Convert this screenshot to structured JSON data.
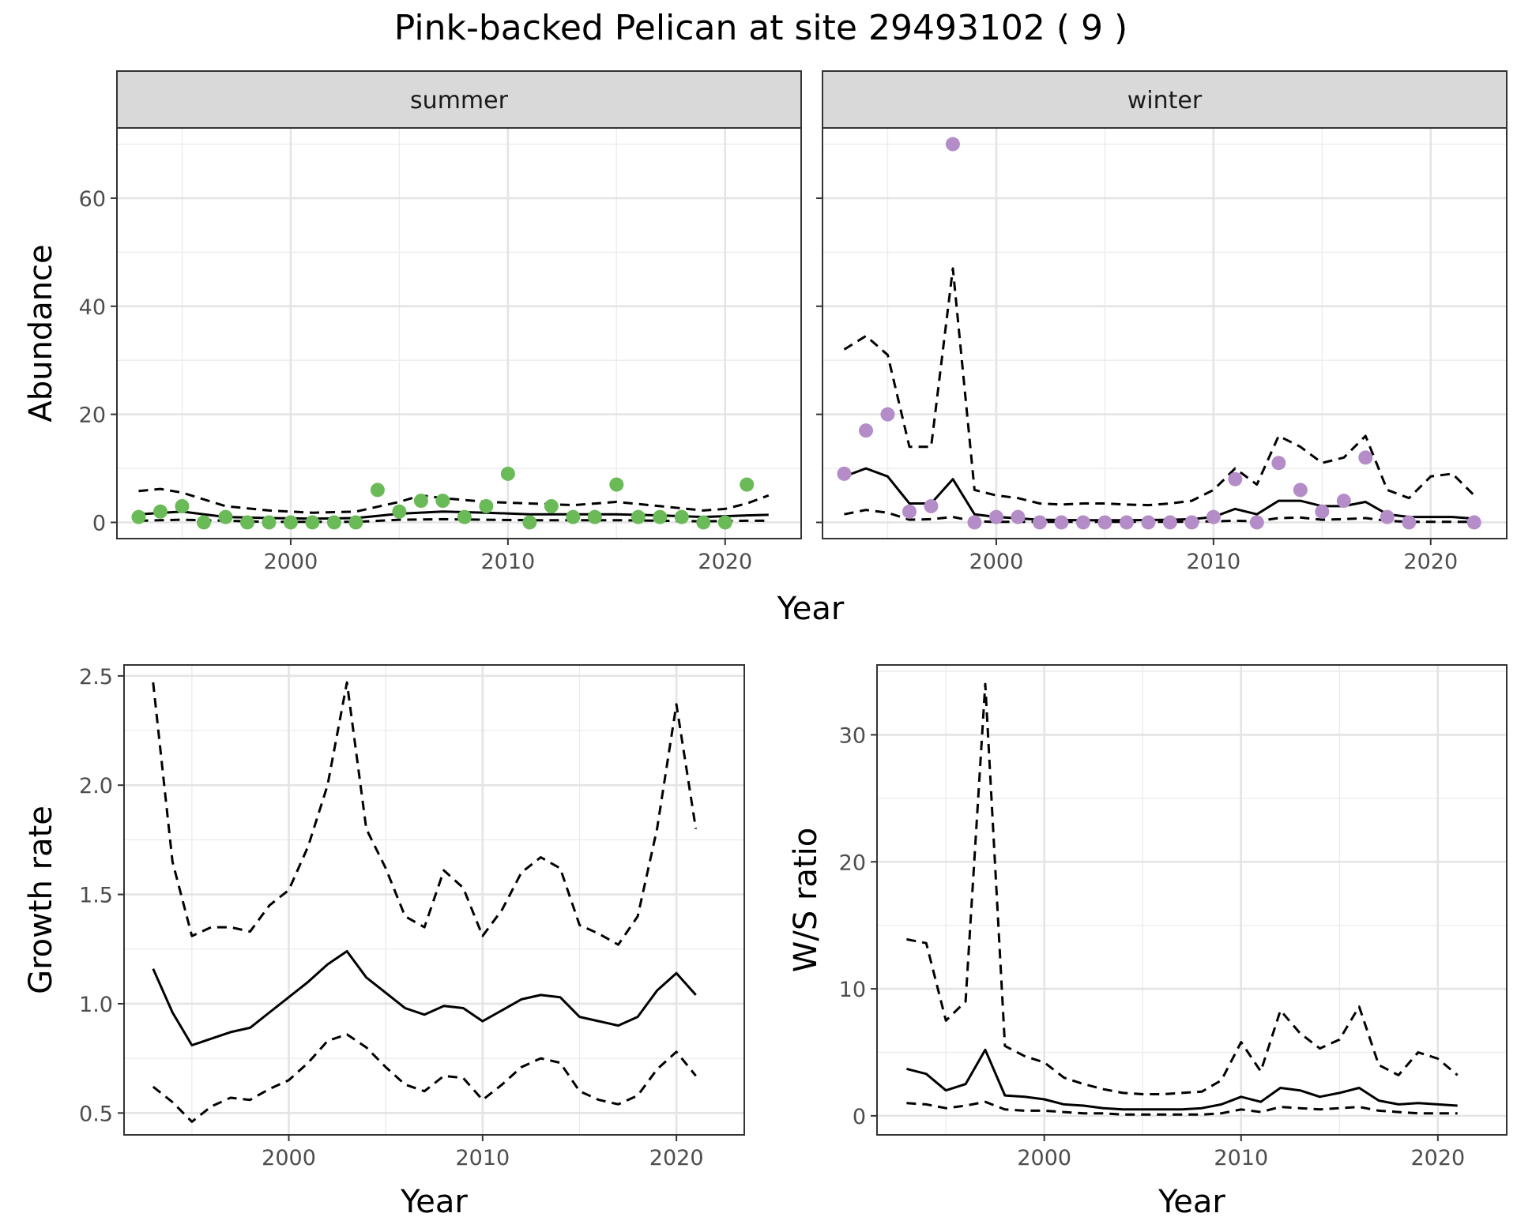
{
  "title": "Pink-backed Pelican at site 29493102 ( 9 )",
  "colors": {
    "summer_points": "#6aba58",
    "winter_points": "#b48cc8",
    "lines": "#000000"
  },
  "chart_data": [
    {
      "type": "scatter",
      "panel": "summer",
      "strip": "summer",
      "xlabel": "",
      "ylabel": "Abundance",
      "xlim": [
        1992,
        2023.5
      ],
      "ylim": [
        -3,
        73
      ],
      "xticks": [
        2000,
        2010,
        2020
      ],
      "yticks": [
        0,
        20,
        40,
        60
      ],
      "grid": true,
      "points": {
        "x": [
          1993,
          1994,
          1995,
          1996,
          1997,
          1998,
          1999,
          2000,
          2001,
          2002,
          2003,
          2004,
          2005,
          2006,
          2007,
          2008,
          2009,
          2010,
          2011,
          2012,
          2013,
          2014,
          2015,
          2016,
          2017,
          2018,
          2019,
          2020,
          2021
        ],
        "y": [
          1,
          2,
          3,
          0,
          1,
          0,
          0,
          0,
          0,
          0,
          0,
          6,
          2,
          4,
          4,
          1,
          3,
          9,
          0,
          3,
          1,
          1,
          7,
          1,
          1,
          1,
          0,
          0,
          7
        ]
      },
      "lines": [
        {
          "style": "solid",
          "x": [
            1993,
            1995,
            1997,
            1999,
            2001,
            2003,
            2005,
            2007,
            2009,
            2011,
            2013,
            2015,
            2017,
            2019,
            2021,
            2022
          ],
          "y": [
            1.5,
            2,
            1,
            0.8,
            0.7,
            0.8,
            1.6,
            2,
            1.8,
            1.5,
            1.5,
            1.5,
            1.3,
            1,
            1.3,
            1.4
          ]
        },
        {
          "style": "dashed",
          "x": [
            1993,
            1994,
            1995,
            1997,
            1999,
            2001,
            2003,
            2005,
            2006,
            2007,
            2009,
            2011,
            2013,
            2015,
            2017,
            2019,
            2020,
            2021,
            2022
          ],
          "y": [
            5.8,
            6.2,
            5.5,
            3,
            2.2,
            1.8,
            2,
            3.8,
            5,
            4.5,
            3.8,
            3.5,
            3.2,
            3.8,
            3,
            2.2,
            2.5,
            3.5,
            5
          ]
        },
        {
          "style": "dashed",
          "x": [
            1993,
            1995,
            1997,
            1999,
            2001,
            2003,
            2005,
            2007,
            2009,
            2011,
            2013,
            2015,
            2017,
            2019,
            2021,
            2022
          ],
          "y": [
            0.3,
            0.5,
            0.3,
            0.1,
            0.1,
            0.1,
            0.5,
            0.6,
            0.5,
            0.4,
            0.4,
            0.4,
            0.3,
            0.2,
            0.3,
            0.3
          ]
        }
      ]
    },
    {
      "type": "scatter",
      "panel": "winter",
      "strip": "winter",
      "xlabel": "",
      "ylabel": "",
      "xlim": [
        1992,
        2023.5
      ],
      "ylim": [
        -3,
        73
      ],
      "xticks": [
        2000,
        2010,
        2020
      ],
      "yticks": [
        0,
        20,
        40,
        60
      ],
      "grid": true,
      "points": {
        "x": [
          1993,
          1994,
          1995,
          1996,
          1997,
          1998,
          1999,
          2000,
          2001,
          2002,
          2003,
          2004,
          2005,
          2006,
          2007,
          2008,
          2009,
          2010,
          2011,
          2012,
          2013,
          2014,
          2015,
          2016,
          2017,
          2018,
          2019,
          2022
        ],
        "y": [
          9,
          17,
          20,
          2,
          3,
          70,
          0,
          1,
          1,
          0,
          0,
          0,
          0,
          0,
          0,
          0,
          0,
          1,
          8,
          0,
          11,
          6,
          2,
          4,
          12,
          1,
          0,
          0
        ]
      },
      "lines": [
        {
          "style": "solid",
          "x": [
            1993,
            1994,
            1995,
            1996,
            1997,
            1998,
            1999,
            2000,
            2002,
            2004,
            2006,
            2008,
            2009,
            2010,
            2011,
            2012,
            2013,
            2014,
            2015,
            2016,
            2017,
            2018,
            2019,
            2020,
            2021,
            2022
          ],
          "y": [
            8.5,
            10,
            8.5,
            3.5,
            3.5,
            8,
            1.5,
            1,
            0.5,
            0.4,
            0.4,
            0.5,
            0.6,
            1,
            2.5,
            1.5,
            4,
            4,
            3,
            3,
            3.8,
            1.5,
            1,
            1,
            1,
            0.7
          ]
        },
        {
          "style": "dashed",
          "x": [
            1993,
            1994,
            1995,
            1996,
            1997,
            1998,
            1999,
            2000,
            2001,
            2002,
            2003,
            2004,
            2005,
            2006,
            2007,
            2008,
            2009,
            2010,
            2011,
            2012,
            2013,
            2014,
            2015,
            2016,
            2017,
            2018,
            2019,
            2020,
            2021,
            2022
          ],
          "y": [
            32,
            34.5,
            31,
            14,
            14,
            47,
            6,
            5,
            4.5,
            3.5,
            3.3,
            3.5,
            3.5,
            3.3,
            3.2,
            3.5,
            4,
            6,
            10,
            7,
            16,
            14,
            11,
            12,
            16,
            6,
            4.5,
            8.5,
            9,
            5
          ]
        },
        {
          "style": "dashed",
          "x": [
            1993,
            1994,
            1995,
            1996,
            1997,
            1998,
            1999,
            2000,
            2002,
            2004,
            2006,
            2008,
            2010,
            2011,
            2012,
            2013,
            2014,
            2015,
            2016,
            2017,
            2018,
            2019,
            2020,
            2021,
            2022
          ],
          "y": [
            1.5,
            2.3,
            1.8,
            0.5,
            0.6,
            1,
            0.2,
            0.1,
            0.1,
            0.1,
            0.1,
            0.1,
            0.2,
            0.3,
            0.2,
            0.8,
            0.9,
            0.5,
            0.6,
            0.8,
            0.3,
            0.1,
            0.1,
            0.1,
            0.1
          ]
        }
      ]
    },
    {
      "type": "line",
      "panel": "growth",
      "xlabel": "Year",
      "ylabel": "Growth rate",
      "xlim": [
        1991.5,
        2023.5
      ],
      "ylim": [
        0.4,
        2.55
      ],
      "xticks": [
        2000,
        2010,
        2020
      ],
      "yticks": [
        0.5,
        1.0,
        1.5,
        2.0,
        2.5
      ],
      "ytick_labels": [
        "0.5",
        "1.0",
        "1.5",
        "2.0",
        "2.5"
      ],
      "grid": true,
      "lines": [
        {
          "style": "solid",
          "x": [
            1993,
            1994,
            1995,
            1996,
            1997,
            1998,
            1999,
            2000,
            2001,
            2002,
            2003,
            2004,
            2005,
            2006,
            2007,
            2008,
            2009,
            2010,
            2011,
            2012,
            2013,
            2014,
            2015,
            2016,
            2017,
            2018,
            2019,
            2020,
            2021
          ],
          "y": [
            1.16,
            0.96,
            0.81,
            0.84,
            0.87,
            0.89,
            0.96,
            1.03,
            1.1,
            1.18,
            1.24,
            1.12,
            1.05,
            0.98,
            0.95,
            0.99,
            0.98,
            0.92,
            0.97,
            1.02,
            1.04,
            1.03,
            0.94,
            0.92,
            0.9,
            0.94,
            1.06,
            1.14,
            1.04
          ]
        },
        {
          "style": "dashed",
          "x": [
            1993,
            1994,
            1995,
            1996,
            1997,
            1998,
            1999,
            2000,
            2001,
            2002,
            2003,
            2004,
            2005,
            2006,
            2007,
            2008,
            2009,
            2010,
            2011,
            2012,
            2013,
            2014,
            2015,
            2016,
            2017,
            2018,
            2019,
            2020,
            2021
          ],
          "y": [
            2.47,
            1.65,
            1.31,
            1.35,
            1.35,
            1.33,
            1.45,
            1.52,
            1.72,
            2.0,
            2.47,
            1.8,
            1.62,
            1.4,
            1.35,
            1.61,
            1.53,
            1.31,
            1.43,
            1.6,
            1.67,
            1.62,
            1.36,
            1.32,
            1.27,
            1.4,
            1.8,
            2.37,
            1.8
          ]
        },
        {
          "style": "dashed",
          "x": [
            1993,
            1994,
            1995,
            1996,
            1997,
            1998,
            1999,
            2000,
            2001,
            2002,
            2003,
            2004,
            2005,
            2006,
            2007,
            2008,
            2009,
            2010,
            2011,
            2012,
            2013,
            2014,
            2015,
            2016,
            2017,
            2018,
            2019,
            2020,
            2021
          ],
          "y": [
            0.62,
            0.55,
            0.46,
            0.53,
            0.57,
            0.56,
            0.61,
            0.65,
            0.73,
            0.83,
            0.86,
            0.8,
            0.71,
            0.63,
            0.6,
            0.67,
            0.66,
            0.56,
            0.63,
            0.71,
            0.75,
            0.73,
            0.6,
            0.56,
            0.54,
            0.58,
            0.7,
            0.78,
            0.67
          ]
        }
      ]
    },
    {
      "type": "line",
      "panel": "ratio",
      "xlabel": "Year",
      "ylabel": "W/S ratio",
      "xlim": [
        1991.5,
        2023.5
      ],
      "ylim": [
        -1.5,
        35.5
      ],
      "xticks": [
        2000,
        2010,
        2020
      ],
      "yticks": [
        0,
        10,
        20,
        30
      ],
      "grid": true,
      "lines": [
        {
          "style": "solid",
          "x": [
            1993,
            1994,
            1995,
            1996,
            1997,
            1998,
            1999,
            2000,
            2001,
            2002,
            2003,
            2004,
            2005,
            2006,
            2007,
            2008,
            2009,
            2010,
            2011,
            2012,
            2013,
            2014,
            2015,
            2016,
            2017,
            2018,
            2019,
            2020,
            2021
          ],
          "y": [
            3.7,
            3.3,
            2,
            2.5,
            5.2,
            1.6,
            1.5,
            1.3,
            0.9,
            0.8,
            0.6,
            0.5,
            0.5,
            0.5,
            0.5,
            0.6,
            0.9,
            1.5,
            1.1,
            2.2,
            2,
            1.5,
            1.8,
            2.2,
            1.2,
            0.9,
            1,
            0.9,
            0.8
          ]
        },
        {
          "style": "dashed",
          "x": [
            1993,
            1994,
            1995,
            1996,
            1997,
            1998,
            1999,
            2000,
            2001,
            2002,
            2003,
            2004,
            2005,
            2006,
            2007,
            2008,
            2009,
            2010,
            2011,
            2012,
            2013,
            2014,
            2015,
            2016,
            2017,
            2018,
            2019,
            2020,
            2021
          ],
          "y": [
            13.9,
            13.6,
            7.5,
            9,
            34,
            5.5,
            4.7,
            4.2,
            3,
            2.5,
            2.1,
            1.8,
            1.7,
            1.7,
            1.8,
            1.9,
            2.8,
            5.8,
            3.5,
            8.3,
            6.5,
            5.3,
            6,
            8.6,
            4,
            3.2,
            5,
            4.5,
            3.2
          ]
        },
        {
          "style": "dashed",
          "x": [
            1993,
            1994,
            1995,
            1996,
            1997,
            1998,
            1999,
            2000,
            2001,
            2002,
            2003,
            2004,
            2005,
            2006,
            2007,
            2008,
            2009,
            2010,
            2011,
            2012,
            2013,
            2014,
            2015,
            2016,
            2017,
            2018,
            2019,
            2020,
            2021
          ],
          "y": [
            1,
            0.9,
            0.6,
            0.8,
            1.1,
            0.5,
            0.4,
            0.4,
            0.3,
            0.2,
            0.2,
            0.1,
            0.1,
            0.1,
            0.1,
            0.1,
            0.2,
            0.5,
            0.3,
            0.7,
            0.6,
            0.5,
            0.6,
            0.7,
            0.4,
            0.3,
            0.2,
            0.2,
            0.2
          ]
        }
      ]
    }
  ],
  "shared_xlabel_top": "Year"
}
